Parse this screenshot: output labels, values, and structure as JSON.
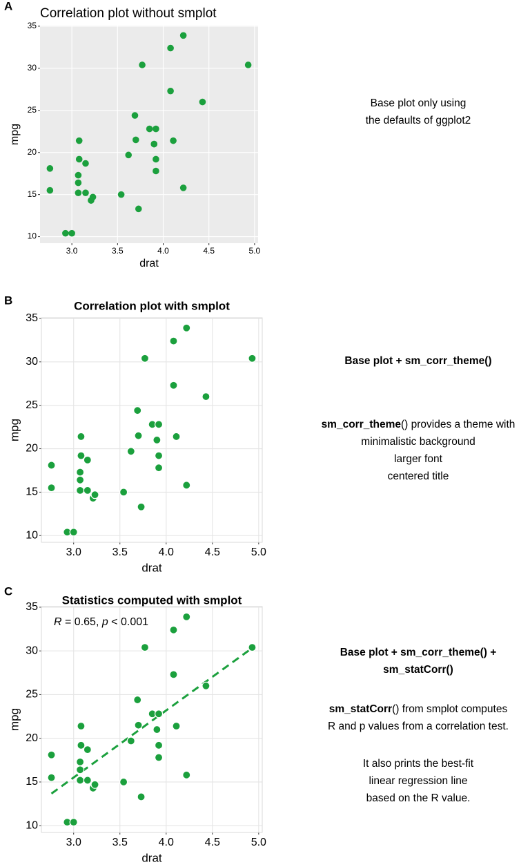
{
  "chart_data": [
    {
      "type": "scatter",
      "panel": "A",
      "title": "Correlation plot without smplot",
      "theme": "grey",
      "x_label": "drat",
      "y_label": "mpg",
      "color": "#1ba03d",
      "x": [
        3.9,
        3.9,
        3.85,
        3.08,
        3.15,
        2.76,
        3.21,
        3.69,
        3.92,
        3.92,
        3.92,
        3.07,
        3.07,
        3.07,
        2.93,
        3.0,
        3.23,
        4.08,
        4.93,
        4.22,
        3.7,
        2.76,
        3.15,
        3.73,
        3.08,
        4.08,
        4.43,
        3.77,
        4.22,
        3.62,
        3.54,
        4.11
      ],
      "values": [
        21.0,
        21.0,
        22.8,
        21.4,
        18.7,
        18.1,
        14.3,
        24.4,
        22.8,
        19.2,
        17.8,
        16.4,
        17.3,
        15.2,
        10.4,
        10.4,
        14.7,
        32.4,
        30.4,
        33.9,
        21.5,
        15.5,
        15.2,
        13.3,
        19.2,
        27.3,
        26.0,
        30.4,
        15.8,
        19.7,
        15.0,
        21.4
      ],
      "xlim": [
        2.6515,
        5.0385
      ],
      "ylim": [
        9.225,
        35.075
      ],
      "xticks": [
        {
          "value": 3.0,
          "label": "3.0"
        },
        3.5,
        {
          "value": 4.0,
          "label": "4.0"
        },
        4.5,
        {
          "value": 5.0,
          "label": "5.0"
        }
      ],
      "yticks": [
        10,
        15,
        20,
        25,
        30,
        35
      ],
      "grid": true,
      "notes": [
        [
          [
            {
              "text": "Base plot only using",
              "bold": false
            }
          ],
          [
            {
              "text": "the defaults of ggplot2",
              "bold": false
            }
          ]
        ]
      ]
    },
    {
      "type": "scatter",
      "panel": "B",
      "title": "Correlation plot with smplot",
      "theme": "minimal",
      "x_label": "drat",
      "y_label": "mpg",
      "color": "#1ba03d",
      "x": [
        3.9,
        3.9,
        3.85,
        3.08,
        3.15,
        2.76,
        3.21,
        3.69,
        3.92,
        3.92,
        3.92,
        3.07,
        3.07,
        3.07,
        2.93,
        3.0,
        3.23,
        4.08,
        4.93,
        4.22,
        3.7,
        2.76,
        3.15,
        3.73,
        3.08,
        4.08,
        4.43,
        3.77,
        4.22,
        3.62,
        3.54,
        4.11
      ],
      "values": [
        21.0,
        21.0,
        22.8,
        21.4,
        18.7,
        18.1,
        14.3,
        24.4,
        22.8,
        19.2,
        17.8,
        16.4,
        17.3,
        15.2,
        10.4,
        10.4,
        14.7,
        32.4,
        30.4,
        33.9,
        21.5,
        15.5,
        15.2,
        13.3,
        19.2,
        27.3,
        26.0,
        30.4,
        15.8,
        19.7,
        15.0,
        21.4
      ],
      "xlim": [
        2.6515,
        5.0385
      ],
      "ylim": [
        9.225,
        35.075
      ],
      "xticks": [
        {
          "value": 3.0,
          "label": "3.0"
        },
        3.5,
        {
          "value": 4.0,
          "label": "4.0"
        },
        4.5,
        {
          "value": 5.0,
          "label": "5.0"
        }
      ],
      "yticks": [
        10,
        15,
        20,
        25,
        30,
        35
      ],
      "grid": true,
      "notes": [
        [
          [
            {
              "text": "Base plot + sm_corr_theme()",
              "bold": true
            }
          ]
        ],
        [
          [
            {
              "text": "sm_corr_theme",
              "bold": true
            },
            {
              "text": "() provides a theme with",
              "bold": false
            }
          ],
          [
            {
              "text": "minimalistic background",
              "bold": false
            }
          ],
          [
            {
              "text": "larger font",
              "bold": false
            }
          ],
          [
            {
              "text": "centered title",
              "bold": false
            }
          ]
        ]
      ]
    },
    {
      "type": "scatter",
      "panel": "C",
      "title": "Statistics computed with smplot",
      "theme": "minimal",
      "x_label": "drat",
      "y_label": "mpg",
      "color": "#1ba03d",
      "x": [
        3.9,
        3.9,
        3.85,
        3.08,
        3.15,
        2.76,
        3.21,
        3.69,
        3.92,
        3.92,
        3.92,
        3.07,
        3.07,
        3.07,
        2.93,
        3.0,
        3.23,
        4.08,
        4.93,
        4.22,
        3.7,
        2.76,
        3.15,
        3.73,
        3.08,
        4.08,
        4.43,
        3.77,
        4.22,
        3.62,
        3.54,
        4.11
      ],
      "values": [
        21.0,
        21.0,
        22.8,
        21.4,
        18.7,
        18.1,
        14.3,
        24.4,
        22.8,
        19.2,
        17.8,
        16.4,
        17.3,
        15.2,
        10.4,
        10.4,
        14.7,
        32.4,
        30.4,
        33.9,
        21.5,
        15.5,
        15.2,
        13.3,
        19.2,
        27.3,
        26.0,
        30.4,
        15.8,
        19.7,
        15.0,
        21.4
      ],
      "xlim": [
        2.6515,
        5.0385
      ],
      "ylim": [
        9.225,
        35.075
      ],
      "xticks": [
        {
          "value": 3.0,
          "label": "3.0"
        },
        3.5,
        {
          "value": 4.0,
          "label": "4.0"
        },
        4.5,
        {
          "value": 5.0,
          "label": "5.0"
        }
      ],
      "yticks": [
        10,
        15,
        20,
        25,
        30,
        35
      ],
      "grid": true,
      "fit_line": {
        "x": [
          2.76,
          4.93
        ],
        "values": [
          13.67,
          30.33
        ]
      },
      "annotation": [
        {
          "text": "R",
          "italic": true
        },
        {
          "text": " = 0.65, ",
          "italic": false
        },
        {
          "text": "p",
          "italic": true
        },
        {
          "text": " < 0.001",
          "italic": false
        }
      ],
      "notes": [
        [
          [
            {
              "text": "Base plot + sm_corr_theme() +",
              "bold": true
            }
          ],
          [
            {
              "text": "sm_statCorr()",
              "bold": true
            }
          ]
        ],
        [
          [
            {
              "text": "sm_statCorr",
              "bold": true
            },
            {
              "text": "() from smplot computes",
              "bold": false
            }
          ],
          [
            {
              "text": "R and p values from a correlation test.",
              "bold": false
            }
          ]
        ],
        [
          [
            {
              "text": "It also prints the best-fit",
              "bold": false
            }
          ],
          [
            {
              "text": "linear regression line",
              "bold": false
            }
          ],
          [
            {
              "text": "based on the R value.",
              "bold": false
            }
          ]
        ]
      ]
    }
  ]
}
